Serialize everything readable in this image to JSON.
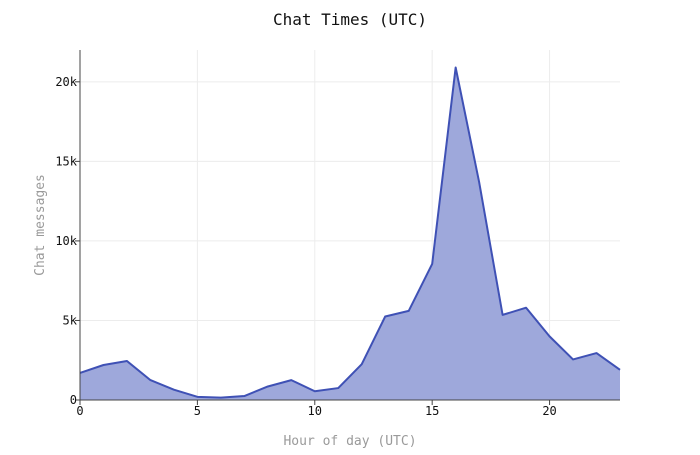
{
  "chart_data": {
    "type": "area",
    "title": "Chat Times (UTC)",
    "xlabel": "Hour of day (UTC)",
    "ylabel": "Chat messages",
    "xlim": [
      0,
      23
    ],
    "ylim": [
      0,
      22000
    ],
    "x_ticks": [
      0,
      5,
      10,
      15,
      20
    ],
    "x_tick_labels": [
      "0",
      "5",
      "10",
      "15",
      "20"
    ],
    "y_ticks": [
      0,
      5000,
      10000,
      15000,
      20000
    ],
    "y_tick_labels": [
      "0",
      "5k",
      "10k",
      "15k",
      "20k"
    ],
    "grid": true,
    "legend": "none",
    "colors": {
      "line": "#3f51b5",
      "fill": "#9ea8db"
    },
    "series": [
      {
        "x": [
          0,
          1,
          2,
          3,
          4,
          5,
          6,
          7,
          8,
          9,
          10,
          11,
          12,
          13,
          14,
          15,
          16,
          17,
          18,
          19,
          20,
          21,
          22,
          23
        ],
        "values": [
          1700,
          2200,
          2450,
          1250,
          650,
          200,
          150,
          250,
          850,
          1250,
          550,
          750,
          2250,
          5250,
          5600,
          8550,
          20900,
          13700,
          5350,
          5800,
          4000,
          2550,
          2950,
          1900
        ]
      }
    ]
  }
}
